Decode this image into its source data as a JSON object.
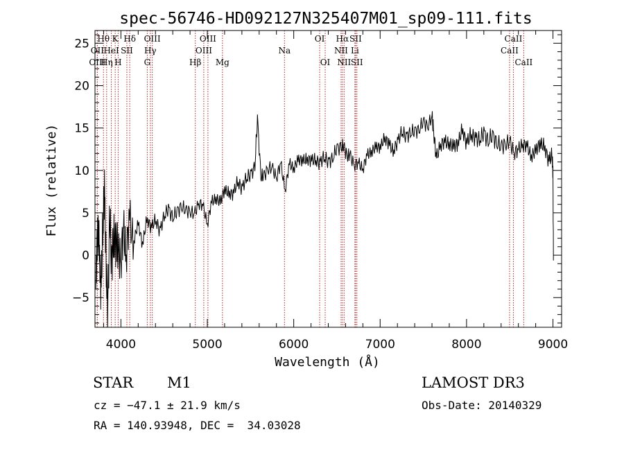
{
  "chart_data": {
    "type": "line",
    "title": "spec-56746-HD092127N325407M01_sp09-111.fits",
    "xlabel": "Wavelength (Å)",
    "ylabel": "Flux (relative)",
    "xlim": [
      3700,
      9100
    ],
    "ylim": [
      -8.5,
      26.5
    ],
    "xticks": [
      4000,
      5000,
      6000,
      7000,
      8000,
      9000
    ],
    "yticks": [
      -5,
      0,
      5,
      10,
      15,
      20,
      25
    ],
    "grid": false,
    "series": [
      {
        "name": "flux",
        "x": [
          3710,
          3730,
          3750,
          3770,
          3790,
          3810,
          3830,
          3850,
          3870,
          3890,
          3910,
          3930,
          3950,
          3970,
          4000,
          4030,
          4060,
          4100,
          4150,
          4200,
          4250,
          4300,
          4350,
          4400,
          4450,
          4500,
          4550,
          4600,
          4650,
          4700,
          4750,
          4800,
          4850,
          4900,
          4950,
          5000,
          5050,
          5100,
          5150,
          5200,
          5250,
          5300,
          5350,
          5400,
          5450,
          5500,
          5550,
          5580,
          5620,
          5650,
          5700,
          5750,
          5800,
          5850,
          5900,
          5950,
          6000,
          6050,
          6100,
          6150,
          6200,
          6250,
          6300,
          6350,
          6400,
          6450,
          6500,
          6550,
          6580,
          6620,
          6650,
          6700,
          6750,
          6800,
          6850,
          6900,
          6950,
          7000,
          7050,
          7100,
          7150,
          7200,
          7250,
          7300,
          7350,
          7400,
          7450,
          7500,
          7550,
          7600,
          7620,
          7650,
          7700,
          7750,
          7800,
          7850,
          7900,
          7950,
          8000,
          8050,
          8100,
          8150,
          8200,
          8250,
          8300,
          8350,
          8400,
          8450,
          8500,
          8550,
          8600,
          8650,
          8700,
          8750,
          8800,
          8850,
          8900,
          8950,
          8990,
          9000,
          9005
        ],
        "y": [
          -4.0,
          4.0,
          0.0,
          -3.5,
          2.5,
          8.5,
          -2.0,
          -6.5,
          5.5,
          -1.5,
          2.5,
          0.5,
          3.0,
          -1.0,
          0.5,
          2.0,
          1.0,
          3.5,
          2.0,
          3.5,
          1.5,
          4.0,
          3.5,
          4.0,
          3.0,
          4.5,
          5.5,
          4.5,
          5.0,
          6.0,
          5.0,
          5.5,
          4.5,
          6.5,
          5.5,
          4.0,
          6.0,
          7.0,
          6.0,
          8.0,
          7.0,
          7.5,
          8.5,
          8.0,
          9.0,
          9.5,
          10.5,
          16.0,
          9.5,
          9.0,
          10.5,
          10.0,
          9.5,
          10.5,
          8.0,
          10.5,
          10.5,
          11.0,
          11.5,
          11.0,
          11.5,
          11.0,
          11.0,
          11.5,
          11.0,
          11.5,
          12.5,
          13.0,
          12.5,
          12.0,
          11.5,
          11.0,
          10.5,
          10.5,
          11.5,
          12.5,
          12.5,
          13.0,
          13.5,
          13.5,
          12.0,
          13.5,
          14.5,
          14.0,
          14.5,
          14.5,
          15.0,
          15.5,
          15.5,
          16.0,
          15.0,
          11.0,
          13.5,
          13.0,
          13.5,
          12.5,
          13.5,
          14.5,
          13.5,
          14.0,
          14.0,
          13.5,
          14.5,
          13.5,
          14.0,
          13.5,
          12.5,
          13.5,
          13.0,
          12.5,
          12.0,
          13.5,
          12.5,
          12.0,
          12.0,
          13.5,
          12.5,
          11.5,
          11.5,
          10.0,
          0.0
        ]
      }
    ],
    "annotations": [
      {
        "text": "H",
        "x": 3798,
        "y_frac_from_top": 0.028,
        "sup": "9"
      },
      {
        "text": "H",
        "x": 3835,
        "y_frac_from_top": 0.028,
        "sup": "ε"
      },
      {
        "text": "K",
        "x": 3934,
        "y_frac_from_top": 0.028
      },
      {
        "text": "H",
        "x": 4102,
        "y_frac_from_top": 0.028,
        "sup": "δ"
      },
      {
        "text": "OIII",
        "x": 4363,
        "y_frac_from_top": 0.028
      },
      {
        "text": "OIII",
        "x": 5007,
        "y_frac_from_top": 0.028
      },
      {
        "text": "OI",
        "x": 6300,
        "y_frac_from_top": 0.028
      },
      {
        "text": "Hα",
        "x": 6563,
        "y_frac_from_top": 0.028
      },
      {
        "text": "SII",
        "x": 6716,
        "y_frac_from_top": 0.028
      },
      {
        "text": "CaII",
        "x": 8542,
        "y_frac_from_top": 0.028
      }
    ],
    "line_markers": [
      {
        "label": "OII",
        "x": 3727,
        "row": 2
      },
      {
        "label": "Hθ",
        "x": 3798,
        "row": 1
      },
      {
        "label": "OIII",
        "x": 3727,
        "row": 3
      },
      {
        "label": "HeI",
        "x": 3889,
        "row": 2
      },
      {
        "label": "Hη",
        "x": 3835,
        "row": 3
      },
      {
        "label": "K",
        "x": 3934,
        "row": 1
      },
      {
        "label": "SII",
        "x": 4069,
        "row": 2
      },
      {
        "label": "H",
        "x": 3968,
        "row": 3
      },
      {
        "label": "Hδ",
        "x": 4102,
        "row": 1
      },
      {
        "label": "OIII",
        "x": 4363,
        "row": 1
      },
      {
        "label": "Hγ",
        "x": 4340,
        "row": 2
      },
      {
        "label": "G",
        "x": 4305,
        "row": 3
      },
      {
        "label": "OIII",
        "x": 5007,
        "row": 1
      },
      {
        "label": "OIII",
        "x": 4959,
        "row": 2
      },
      {
        "label": "Hβ",
        "x": 4861,
        "row": 3
      },
      {
        "label": "Mg",
        "x": 5175,
        "row": 3
      },
      {
        "label": "Na",
        "x": 5893,
        "row": 2
      },
      {
        "label": "OI",
        "x": 6300,
        "row": 1
      },
      {
        "label": "OI",
        "x": 6364,
        "row": 3
      },
      {
        "label": "Hα",
        "x": 6563,
        "row": 1
      },
      {
        "label": "NII",
        "x": 6548,
        "row": 2
      },
      {
        "label": "NII",
        "x": 6583,
        "row": 3
      },
      {
        "label": "SII",
        "x": 6716,
        "row": 1
      },
      {
        "label": "Li",
        "x": 6708,
        "row": 2
      },
      {
        "label": "SII",
        "x": 6731,
        "row": 3
      },
      {
        "label": "CaII",
        "x": 8542,
        "row": 1
      },
      {
        "label": "CaII",
        "x": 8498,
        "row": 2
      },
      {
        "label": "CaII",
        "x": 8662,
        "row": 3
      }
    ]
  },
  "info": {
    "object_class": "STAR",
    "subclass": "M1",
    "survey": "LAMOST DR3",
    "redshift": "cz = −47.1 ± 21.9 km/s",
    "obs_date": "Obs-Date: 20140329",
    "coords": "RA = 140.93948, DEC =  34.03028"
  },
  "style": {
    "line_color": "#000000",
    "marker_color": "#b22222",
    "background": "#ffffff"
  }
}
